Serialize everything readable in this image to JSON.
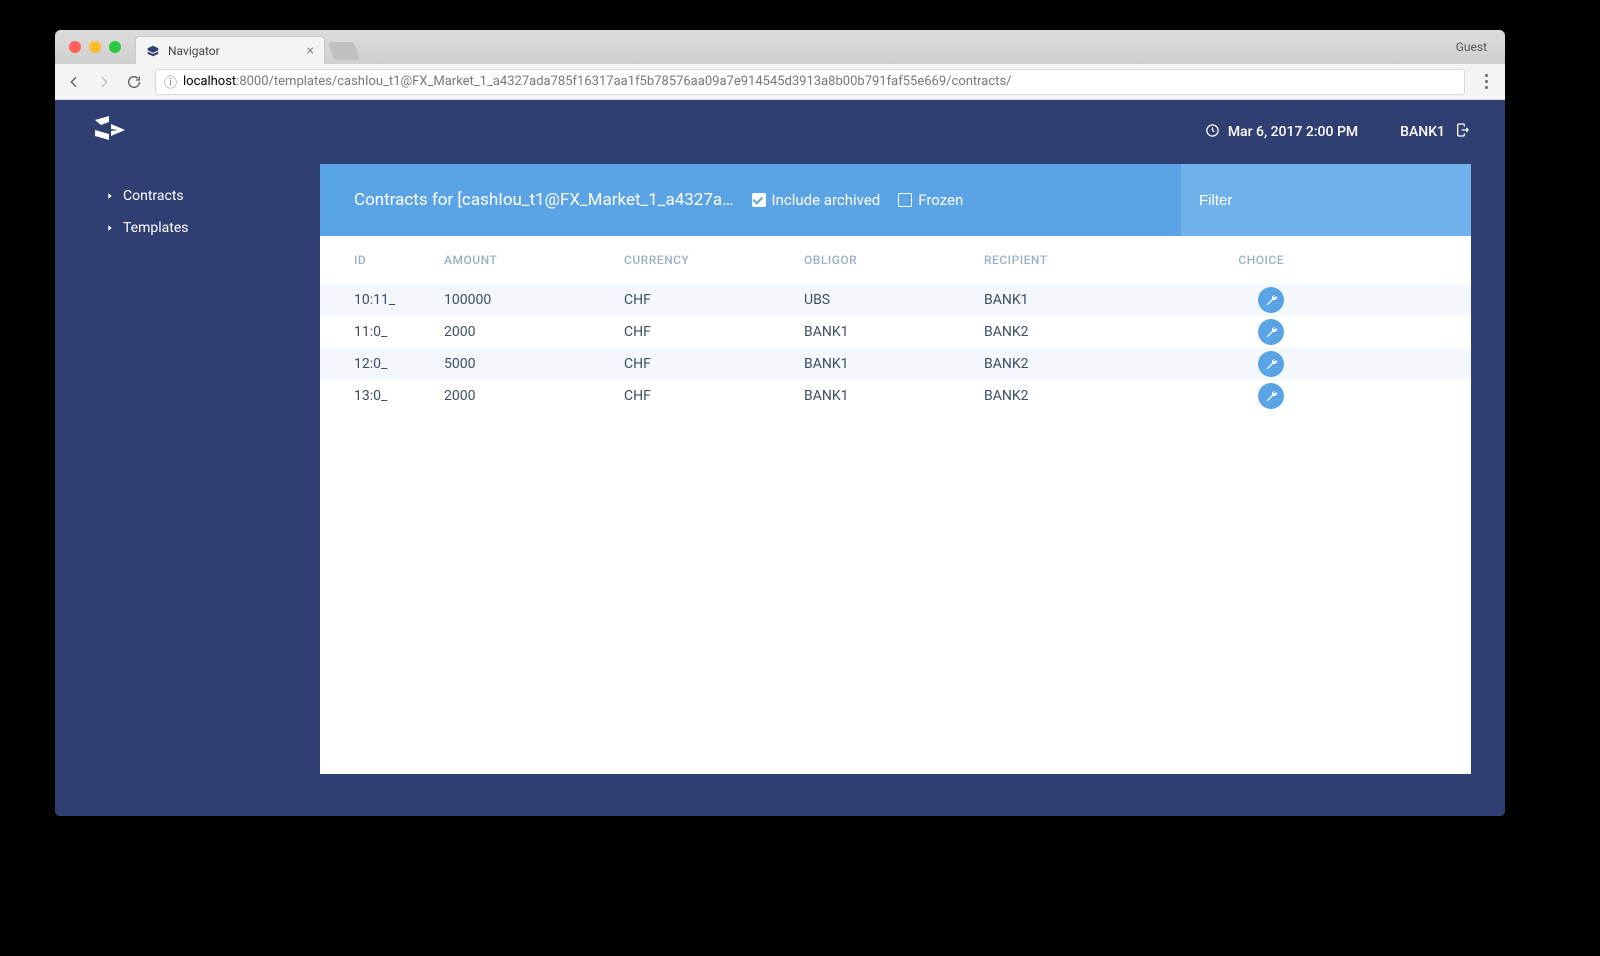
{
  "browser": {
    "tab_title": "Navigator",
    "guest_label": "Guest",
    "url_host": "localhost",
    "url_path": ":8000/templates/cashIou_t1@FX_Market_1_a4327ada785f16317aa1f5b78576aa09a7e914545d3913a8b00b791faf55e669/contracts/"
  },
  "header": {
    "datetime": "Mar 6, 2017 2:00 PM",
    "user": "BANK1"
  },
  "sidebar": {
    "items": [
      {
        "label": "Contracts"
      },
      {
        "label": "Templates"
      }
    ]
  },
  "panel": {
    "title": "Contracts for [cashIou_t1@FX_Market_1_a4327a…",
    "include_archived_label": "Include archived",
    "include_archived_checked": true,
    "frozen_label": "Frozen",
    "frozen_checked": false,
    "filter_placeholder": "Filter"
  },
  "table": {
    "columns": [
      "ID",
      "AMOUNT",
      "CURRENCY",
      "OBLIGOR",
      "RECIPIENT",
      "CHOICE"
    ],
    "rows": [
      {
        "id": "10:11_",
        "amount": "100000",
        "currency": "CHF",
        "obligor": "UBS",
        "recipient": "BANK1"
      },
      {
        "id": "11:0_",
        "amount": "2000",
        "currency": "CHF",
        "obligor": "BANK1",
        "recipient": "BANK2"
      },
      {
        "id": "12:0_",
        "amount": "5000",
        "currency": "CHF",
        "obligor": "BANK1",
        "recipient": "BANK2"
      },
      {
        "id": "13:0_",
        "amount": "2000",
        "currency": "CHF",
        "obligor": "BANK1",
        "recipient": "BANK2"
      }
    ]
  },
  "colors": {
    "app_bg": "#2f3f71",
    "header_blue": "#5aa4e6",
    "header_blue_light": "#6fb1ea",
    "row_alt": "#f4f7fb",
    "th_text": "#9ab0c9",
    "td_text": "#3d4d63"
  }
}
